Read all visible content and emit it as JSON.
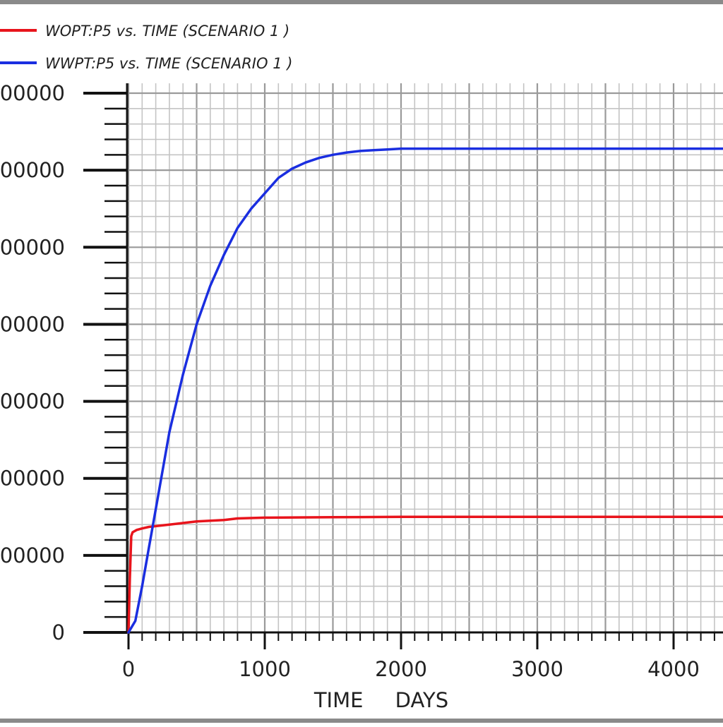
{
  "chart_data": {
    "type": "line",
    "xlabel": "TIME DAYS",
    "ylabel": "",
    "xlim": [
      0,
      4400
    ],
    "ylim": [
      0,
      700000
    ],
    "x_ticks": [
      "0",
      "1000",
      "2000",
      "3000",
      "4000"
    ],
    "y_ticks": [
      "0",
      "00000",
      "00000",
      "00000",
      "00000",
      "00000",
      "00000",
      "00000"
    ],
    "grid": true,
    "legend_position": "top-left",
    "series": [
      {
        "name": "WOPT:P5 vs. TIME (SCENARIO 1 )",
        "color": "#e8141c",
        "x": [
          0,
          10,
          20,
          30,
          60,
          100,
          150,
          200,
          300,
          400,
          500,
          600,
          700,
          800,
          1000,
          1500,
          2000,
          3000,
          4000,
          4400
        ],
        "y": [
          0,
          70000,
          125000,
          130000,
          133000,
          135000,
          137000,
          138000,
          140000,
          142000,
          144000,
          145000,
          146000,
          148000,
          149000,
          149500,
          150000,
          150000,
          150000,
          150000
        ]
      },
      {
        "name": "WWPT:P5 vs. TIME (SCENARIO 1 )",
        "color": "#1a2ee0",
        "x": [
          0,
          50,
          100,
          150,
          200,
          300,
          400,
          500,
          600,
          700,
          800,
          900,
          1000,
          1100,
          1200,
          1300,
          1400,
          1500,
          1600,
          1700,
          1800,
          1900,
          2000,
          3000,
          4000,
          4400
        ],
        "y": [
          0,
          15000,
          60000,
          110000,
          160000,
          260000,
          335000,
          400000,
          450000,
          490000,
          525000,
          550000,
          570000,
          590000,
          602000,
          610000,
          616000,
          620000,
          623000,
          625000,
          626000,
          627000,
          628000,
          628000,
          628000,
          628000
        ]
      }
    ]
  }
}
